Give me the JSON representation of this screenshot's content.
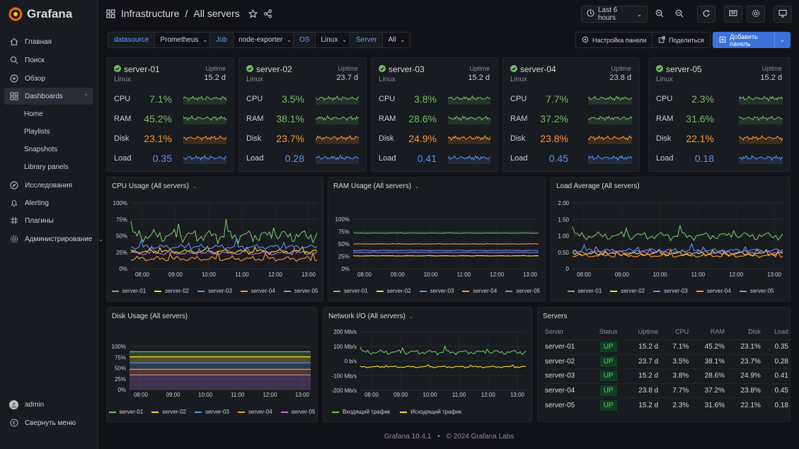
{
  "app": {
    "name": "Grafana",
    "version_footer": "Grafana 10.4.1",
    "copyright": "© 2024 Grafana Labs",
    "separator": "•"
  },
  "colors": {
    "bg": "#111217",
    "panel": "#181b1f",
    "accent": "#3d71d9",
    "green": "#73bf69",
    "orange": "#ff9830",
    "blue": "#5794f2",
    "purple": "#b877d9",
    "yellow": "#fade2a",
    "red": "#f2495c"
  },
  "nav": {
    "items": [
      {
        "label": "Главная",
        "icon": "home-icon"
      },
      {
        "label": "Поиск",
        "icon": "search-icon"
      },
      {
        "label": "Обзор",
        "icon": "compass-icon"
      },
      {
        "label": "Dashboards",
        "icon": "dashboards-icon",
        "active": true
      },
      {
        "label": "Исследования",
        "icon": "explore-icon"
      },
      {
        "label": "Alerting",
        "icon": "bell-icon"
      },
      {
        "label": "Плагины",
        "icon": "plugins-icon"
      },
      {
        "label": "Администрирование",
        "icon": "gear-icon"
      }
    ],
    "dashboards_sub": [
      "Home",
      "Playlists",
      "Snapshots",
      "Library panels"
    ],
    "user": "admin",
    "collapse": "Свернуть меню"
  },
  "breadcrumb": {
    "parent": "Infrastructure",
    "sep": "/",
    "current": "All servers"
  },
  "toolbar": {
    "time_range": "Last 6 hours"
  },
  "variables": [
    {
      "label": "datasource",
      "value": "Prometheus"
    },
    {
      "label": "Job",
      "value": "node-exporter"
    },
    {
      "label": "OS",
      "value": "Linux"
    },
    {
      "label": "Server",
      "value": "All"
    }
  ],
  "actions": {
    "settings": "Настройка панели",
    "share": "Поделиться",
    "add_panel": "Добавить панель"
  },
  "metric_labels": {
    "cpu": "CPU",
    "ram": "RAM",
    "disk": "Disk",
    "load": "Load",
    "uptime": "Uptime"
  },
  "servers": [
    {
      "name": "server-01",
      "os": "Linux",
      "uptime": "15.2 d",
      "status": "UP",
      "cpu": "7.1%",
      "ram": "45.2%",
      "disk": "23.1%",
      "load": "0.35"
    },
    {
      "name": "server-02",
      "os": "Linux",
      "uptime": "23.7 d",
      "status": "UP",
      "cpu": "3.5%",
      "ram": "38.1%",
      "disk": "23.7%",
      "load": "0.28"
    },
    {
      "name": "server-03",
      "os": "Linux",
      "uptime": "15.2 d",
      "status": "UP",
      "cpu": "3.8%",
      "ram": "28.6%",
      "disk": "24.9%",
      "load": "0.41"
    },
    {
      "name": "server-04",
      "os": "Linux",
      "uptime": "23.8 d",
      "status": "UP",
      "cpu": "7.7%",
      "ram": "37.2%",
      "disk": "23.8%",
      "load": "0.45"
    },
    {
      "name": "server-05",
      "os": "Linux",
      "uptime": "15.2 d",
      "status": "UP",
      "cpu": "2.3%",
      "ram": "31.6%",
      "disk": "22.1%",
      "load": "0.18"
    }
  ],
  "panels": {
    "cpu_title": "CPU Usage (All servers)",
    "ram_title": "RAM Usage (All servers)",
    "load_title": "Load Average (All servers)",
    "disk_title": "Disk Usage (All servers)",
    "net_title": "Network I/O  (All servers)",
    "table_title": "Servers"
  },
  "table": {
    "headers": [
      "Server",
      "Status",
      "Uptime",
      "CPU",
      "RAM",
      "Disk",
      "Load"
    ]
  },
  "chart_data": [
    {
      "id": "cpu",
      "type": "line",
      "title": "CPU Usage (All servers)",
      "x_ticks": [
        "08:00",
        "09:00",
        "10:00",
        "11:00",
        "12:00",
        "13:00"
      ],
      "y_ticks": [
        "0%",
        "25%",
        "50%",
        "75%",
        "100%"
      ],
      "ylim": [
        0,
        100
      ],
      "series": [
        {
          "name": "server-01",
          "color": "#73bf69",
          "mean": 50,
          "amp": 16
        },
        {
          "name": "server-02",
          "color": "#fade2a",
          "mean": 26,
          "amp": 6
        },
        {
          "name": "server-03",
          "color": "#5794f2",
          "mean": 33,
          "amp": 6
        },
        {
          "name": "server-04",
          "color": "#ff9830",
          "mean": 15,
          "amp": 6
        },
        {
          "name": "server-05",
          "color": "#b877d9",
          "mean": 24,
          "amp": 6
        }
      ]
    },
    {
      "id": "ram",
      "type": "line",
      "title": "RAM Usage (All servers)",
      "x_ticks": [
        "08:00",
        "09:00",
        "10:00",
        "11:00",
        "12:00",
        "13:00"
      ],
      "y_ticks": [
        "0%",
        "25%",
        "50%",
        "75%",
        "100%"
      ],
      "ylim": [
        0,
        100
      ],
      "series": [
        {
          "name": "server-01",
          "color": "#73bf69",
          "mean": 72,
          "amp": 0.6
        },
        {
          "name": "server-02",
          "color": "#fade2a",
          "mean": 26,
          "amp": 0.6
        },
        {
          "name": "server-03",
          "color": "#5794f2",
          "mean": 37,
          "amp": 0.6
        },
        {
          "name": "server-04",
          "color": "#ff9830",
          "mean": 50,
          "amp": 0.6
        },
        {
          "name": "server-05",
          "color": "#b877d9",
          "mean": 33,
          "amp": 0.6
        }
      ]
    },
    {
      "id": "load",
      "type": "line",
      "title": "Load Average (All servers)",
      "x_ticks": [
        "08:00",
        "09:00",
        "10:00",
        "11:00",
        "12:00",
        "13:00"
      ],
      "y_ticks": [
        "0",
        "0.50",
        "1.00",
        "1.50",
        "2.00"
      ],
      "ylim": [
        0,
        2
      ],
      "series": [
        {
          "name": "server-01",
          "color": "#73bf69",
          "mean": 1.0,
          "amp": 0.2
        },
        {
          "name": "server-02",
          "color": "#fade2a",
          "mean": 0.45,
          "amp": 0.1
        },
        {
          "name": "server-03",
          "color": "#5794f2",
          "mean": 0.55,
          "amp": 0.1
        },
        {
          "name": "server-04",
          "color": "#ff9830",
          "mean": 0.4,
          "amp": 0.1
        },
        {
          "name": "server-05",
          "color": "#b877d9",
          "mean": 0.5,
          "amp": 0.1
        }
      ]
    },
    {
      "id": "disk",
      "type": "area",
      "title": "Disk Usage (All servers)",
      "x_ticks": [
        "08:00",
        "09:00",
        "10:00",
        "11:00",
        "12:00",
        "13:00"
      ],
      "y_ticks": [
        "0%",
        "25%",
        "50%",
        "75%",
        "100%"
      ],
      "ylim": [
        0,
        100
      ],
      "series": [
        {
          "name": "server-01",
          "color": "#73bf69",
          "value": 88
        },
        {
          "name": "server-02",
          "color": "#fade2a",
          "value": 76
        },
        {
          "name": "server-03",
          "color": "#5794f2",
          "value": 62
        },
        {
          "name": "server-04",
          "color": "#ff9830",
          "value": 47
        },
        {
          "name": "server-05",
          "color": "#b877d9",
          "value": 34
        }
      ]
    },
    {
      "id": "net",
      "type": "line",
      "title": "Network I/O  (All servers)",
      "x_ticks": [
        "08:00",
        "09:00",
        "10:00",
        "11:00",
        "12:00",
        "13:00"
      ],
      "y_ticks": [
        "-200 Mb/s",
        "-100 Mb/s",
        "0 b/s",
        "100 Mb/s",
        "200 Mb/s"
      ],
      "ylim": [
        -200,
        200
      ],
      "series": [
        {
          "name": "Входящий трафик",
          "color": "#73bf69",
          "mean": 60,
          "amp": 25
        },
        {
          "name": "Исходящий трафик",
          "color": "#fade2a",
          "mean": -40,
          "amp": 10
        }
      ]
    }
  ]
}
